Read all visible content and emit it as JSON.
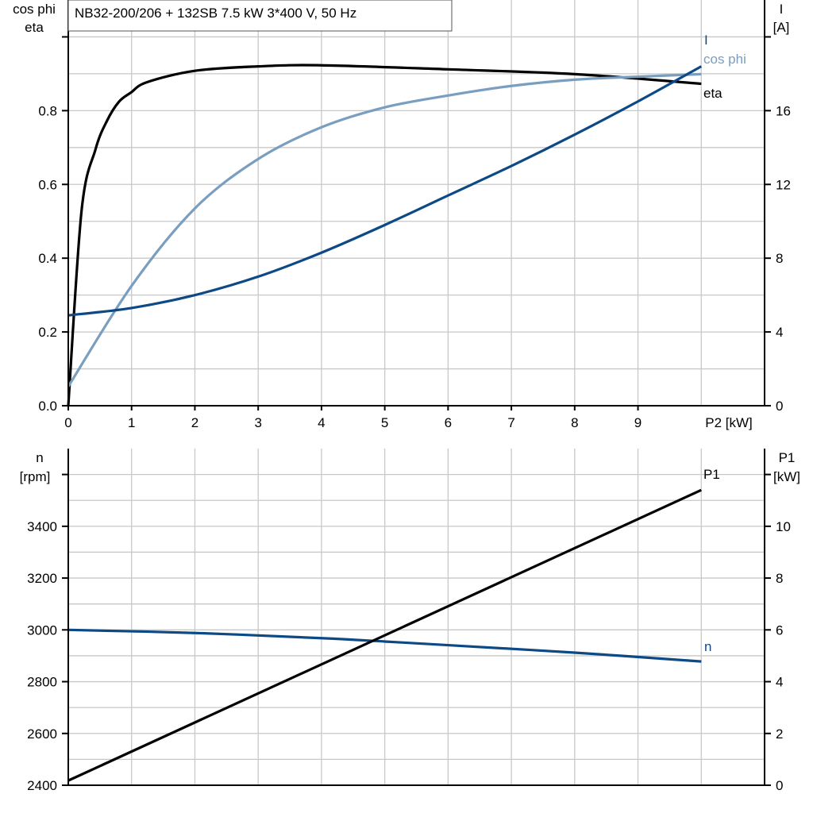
{
  "title": "NB32-200/206 + 132SB   7.5 kW   3*400 V, 50 Hz",
  "colors": {
    "eta": "#000000",
    "cos_phi": "#7a9ec0",
    "I": "#0d4a85",
    "n": "#0d4a85",
    "P1": "#000000",
    "grid": "#c8c8c8"
  },
  "chart_data": [
    {
      "type": "line",
      "xlabel": "P2 [kW]",
      "xlim": [
        0,
        11
      ],
      "x_ticks": [
        "0",
        "1",
        "2",
        "3",
        "4",
        "5",
        "6",
        "7",
        "8",
        "9"
      ],
      "ylabel_left": [
        "cos phi",
        "eta"
      ],
      "ylim_left": [
        0,
        1.1
      ],
      "y_ticks_left": [
        "0.0",
        "0.2",
        "0.4",
        "0.6",
        "0.8"
      ],
      "ylabel_right": [
        "I",
        "[A]"
      ],
      "ylim_right": [
        0,
        22
      ],
      "y_ticks_right": [
        "0",
        "4",
        "8",
        "12",
        "16"
      ],
      "grid": true,
      "series": [
        {
          "name": "eta",
          "axis": "left",
          "x": [
            0,
            0.21,
            0.43,
            0.61,
            0.8,
            0.99,
            1.24,
            2,
            3,
            4,
            6,
            8,
            10
          ],
          "y": [
            0,
            0.529,
            0.695,
            0.772,
            0.824,
            0.849,
            0.877,
            0.908,
            0.92,
            0.923,
            0.912,
            0.899,
            0.873
          ]
        },
        {
          "name": "cos phi",
          "axis": "left",
          "x": [
            0,
            1,
            2,
            3,
            4,
            5,
            6,
            7,
            8,
            9,
            10
          ],
          "y": [
            0.052,
            0.325,
            0.535,
            0.669,
            0.755,
            0.809,
            0.841,
            0.867,
            0.884,
            0.892,
            0.899
          ]
        },
        {
          "name": "I",
          "axis": "right",
          "x": [
            0,
            1,
            2,
            3,
            4,
            5,
            6,
            7,
            8,
            9,
            10
          ],
          "y": [
            4.9,
            5.3,
            6.0,
            7.0,
            8.3,
            9.8,
            11.4,
            13.0,
            14.7,
            16.5,
            18.4
          ]
        }
      ]
    },
    {
      "type": "line",
      "xlim": [
        0,
        11
      ],
      "ylabel_left": [
        "n",
        "[rpm]"
      ],
      "ylim_left": [
        2400,
        3700
      ],
      "y_ticks_left": [
        "2400",
        "2600",
        "2800",
        "3000",
        "3200",
        "3400"
      ],
      "ylabel_right": [
        "P1",
        "[kW]"
      ],
      "ylim_right": [
        0,
        13
      ],
      "y_ticks_right": [
        "0",
        "2",
        "4",
        "6",
        "8",
        "10"
      ],
      "grid": true,
      "series": [
        {
          "name": "n",
          "axis": "left",
          "x": [
            0,
            2,
            4,
            5,
            6,
            8,
            10
          ],
          "y": [
            3000,
            2988,
            2968,
            2955,
            2941,
            2912,
            2878
          ]
        },
        {
          "name": "P1",
          "axis": "right",
          "x": [
            0,
            10
          ],
          "y": [
            0.18,
            11.4
          ]
        }
      ]
    }
  ]
}
